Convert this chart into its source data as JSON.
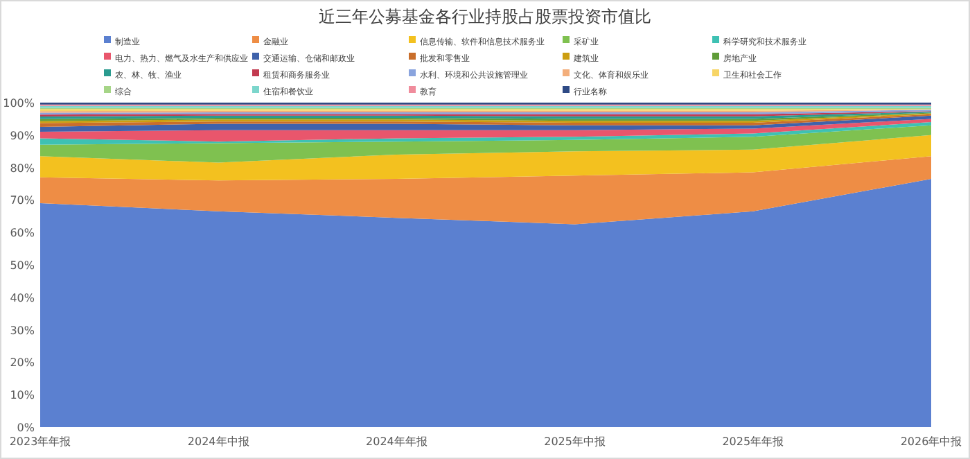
{
  "chart_data": {
    "type": "area",
    "stacked": true,
    "title": "近三年公募基金各行业持股占股票投资市值比",
    "legend": "top",
    "categories": [
      "2023年年报",
      "2024年中报",
      "2024年年报",
      "2025年中报",
      "2025年年报",
      "2026年中报"
    ],
    "ylim": [
      0,
      100
    ],
    "yticks": [
      {
        "value": 0,
        "label": "0%"
      },
      {
        "value": 10,
        "label": "10%"
      },
      {
        "value": 20,
        "label": "20%"
      },
      {
        "value": 30,
        "label": "30%"
      },
      {
        "value": 40,
        "label": "40%"
      },
      {
        "value": 50,
        "label": "50%"
      },
      {
        "value": 60,
        "label": "60%"
      },
      {
        "value": 70,
        "label": "70%"
      },
      {
        "value": 80,
        "label": "80%"
      },
      {
        "value": 90,
        "label": "90%"
      },
      {
        "value": 100,
        "label": "100%"
      }
    ],
    "series": [
      {
        "name": "制造业",
        "color": "#5b80d0",
        "values": [
          69,
          66.5,
          64.5,
          62.5,
          66.5,
          76.5
        ]
      },
      {
        "name": "金融业",
        "color": "#ee8d45",
        "values": [
          8,
          9.5,
          12,
          15,
          12,
          7
        ]
      },
      {
        "name": "信息传输、软件和信息技术服务业",
        "color": "#f3c11f",
        "values": [
          6.5,
          5.5,
          7.5,
          7.5,
          7,
          6.5
        ]
      },
      {
        "name": "采矿业",
        "color": "#7fc150",
        "values": [
          3.5,
          6,
          4,
          3.5,
          4,
          3
        ]
      },
      {
        "name": "科学研究和技术服务业",
        "color": "#3ec1b3",
        "values": [
          2,
          0.5,
          1,
          1,
          1,
          1
        ]
      },
      {
        "name": "电力、热力、燃气及水生产和供应业",
        "color": "#e9566c",
        "values": [
          2,
          3.5,
          2.5,
          2,
          1.5,
          1
        ]
      },
      {
        "name": "交通运输、仓储和邮政业",
        "color": "#3f62ab",
        "values": [
          1.5,
          2,
          2,
          1.5,
          1,
          1
        ]
      },
      {
        "name": "批发和零售业",
        "color": "#c96e2b",
        "values": [
          1.2,
          0.7,
          0.7,
          0.8,
          0.8,
          0.4
        ]
      },
      {
        "name": "建筑业",
        "color": "#cc9e10",
        "values": [
          0.6,
          0.6,
          0.6,
          0.6,
          0.6,
          0.3
        ]
      },
      {
        "name": "房地产业",
        "color": "#5f9c38",
        "values": [
          0.6,
          0.5,
          0.5,
          0.6,
          0.6,
          0.2
        ]
      },
      {
        "name": "农、林、牧、渔业",
        "color": "#2a9b8f",
        "values": [
          0.8,
          0.7,
          0.7,
          0.8,
          0.8,
          0.3
        ]
      },
      {
        "name": "租赁和商务服务业",
        "color": "#c23a50",
        "values": [
          0.6,
          0.5,
          0.5,
          0.6,
          0.6,
          0.2
        ]
      },
      {
        "name": "水利、环境和公共设施管理业",
        "color": "#8aa4de",
        "values": [
          0.6,
          0.5,
          0.5,
          0.6,
          0.6,
          0.4
        ]
      },
      {
        "name": "文化、体育和娱乐业",
        "color": "#f3ae7b",
        "values": [
          0.5,
          0.5,
          0.5,
          0.5,
          0.5,
          0.1
        ]
      },
      {
        "name": "卫生和社会工作",
        "color": "#f7d566",
        "values": [
          0.6,
          0.5,
          0.5,
          0.5,
          0.5,
          0.1
        ]
      },
      {
        "name": "综合",
        "color": "#a6d587",
        "values": [
          0.4,
          0.4,
          0.4,
          0.4,
          0.4,
          0.4
        ]
      },
      {
        "name": "住宿和餐饮业",
        "color": "#7cd6cc",
        "values": [
          0.6,
          0.6,
          0.6,
          0.6,
          0.6,
          0.6
        ]
      },
      {
        "name": "教育",
        "color": "#f08c9c",
        "values": [
          0.4,
          0.4,
          0.4,
          0.4,
          0.4,
          0.4
        ]
      },
      {
        "name": "行业名称",
        "color": "#2e4a85",
        "values": [
          0.6,
          0.6,
          0.6,
          0.6,
          0.6,
          0.6
        ]
      }
    ]
  }
}
